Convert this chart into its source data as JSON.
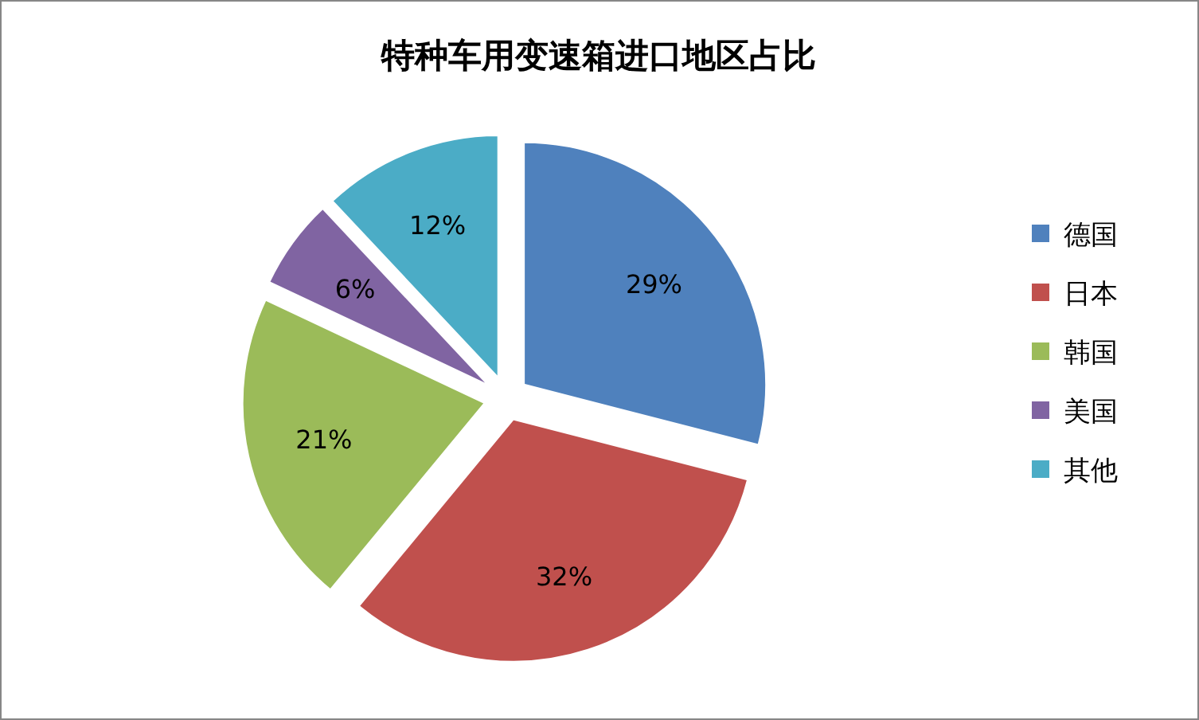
{
  "chart_data": {
    "type": "pie",
    "title": "特种车用变速箱进口地区占比",
    "categories": [
      "德国",
      "日本",
      "韩国",
      "美国",
      "其他"
    ],
    "values": [
      29,
      32,
      21,
      6,
      12
    ],
    "colors": [
      "#4f81bd",
      "#c0504d",
      "#9bbb59",
      "#8064a2",
      "#4bacc6"
    ],
    "value_labels": [
      "29%",
      "32%",
      "21%",
      "6%",
      "12%"
    ],
    "legend": "right"
  }
}
